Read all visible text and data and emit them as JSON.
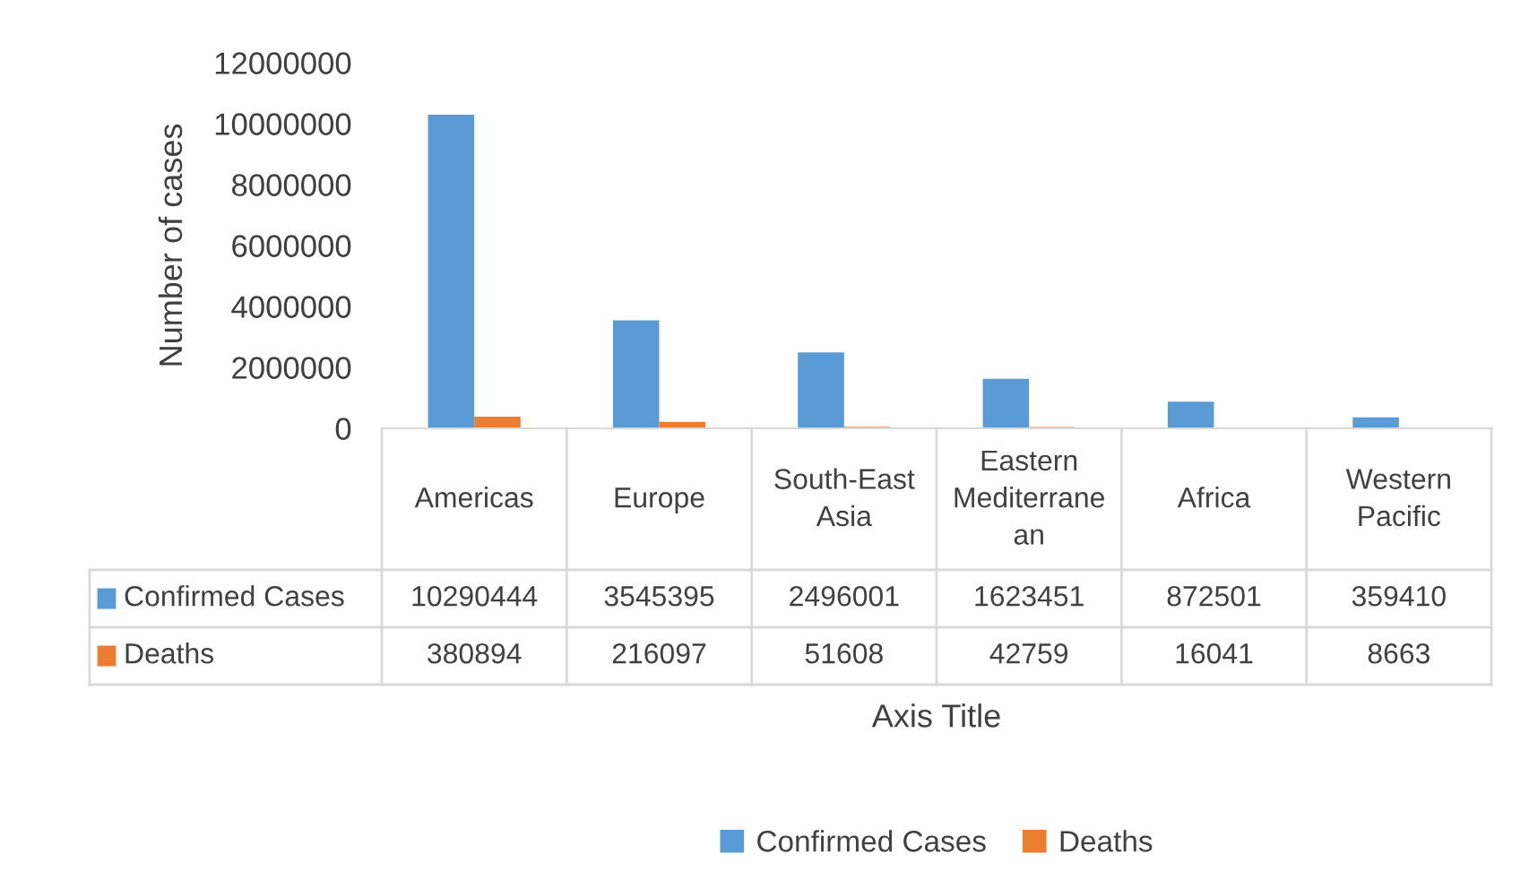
{
  "chart_data": {
    "type": "bar",
    "categories": [
      "Americas",
      "Europe",
      "South-East Asia",
      "Eastern Mediterranean",
      "Africa",
      "Western Pacific"
    ],
    "series": [
      {
        "name": "Confirmed Cases",
        "color": "#5b9bd5",
        "values": [
          10290444,
          3545395,
          2496001,
          1623451,
          872501,
          359410
        ]
      },
      {
        "name": "Deaths",
        "color": "#ed7d31",
        "values": [
          380894,
          216097,
          51608,
          42759,
          16041,
          8663
        ]
      }
    ],
    "ylabel": "Number of cases",
    "xlabel": "Axis Title",
    "ylim": [
      0,
      12000000
    ],
    "yticks": [
      0,
      2000000,
      4000000,
      6000000,
      8000000,
      10000000,
      12000000
    ],
    "grid": false,
    "legend": "bottom",
    "data_labels": true
  }
}
